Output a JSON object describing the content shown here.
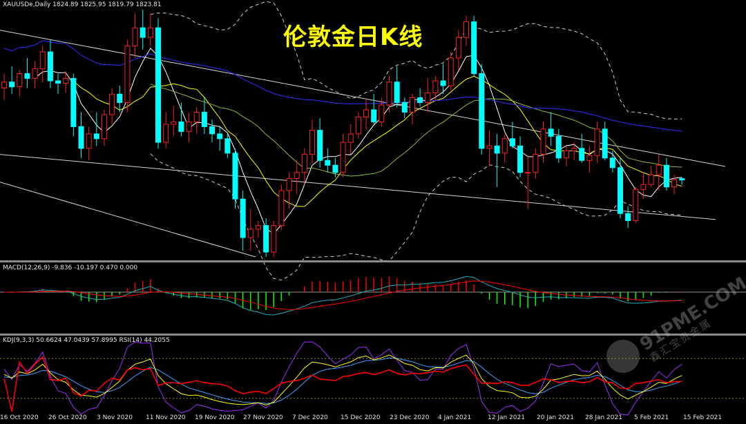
{
  "header": {
    "symbol_line": "XAUUSDe,Daily  1824.89 1825.95 1819.79 1823.81",
    "title": "伦敦金日K线"
  },
  "macd_panel": {
    "label": "MACD(12,26,9) -9.836 -10.197 0.470 0.000"
  },
  "kdj_panel": {
    "label": "KDJ(9,3,3) 50.6624 47.0439 57.8995  RSI(14) 44.2055"
  },
  "dates": [
    "16 Oct 2020",
    "26 Oct 2020",
    "3 Nov 2020",
    "11 Nov 2020",
    "19 Nov 2020",
    "27 Nov 2020",
    "7 Dec 2020",
    "15 Dec 2020",
    "23 Dec 2020",
    "4 Jan 2021",
    "12 Jan 2021",
    "20 Jan 2021",
    "28 Jan 2021",
    "5 Feb 2021",
    "15 Feb 2021"
  ],
  "watermark": {
    "brand": "91PME.COM",
    "cn": "鑫汇宝贵金属"
  },
  "colors": {
    "up": "#ff2020",
    "down": "#00ffff",
    "ma_fast": "#ffffff",
    "ma_mid": "#ffff00",
    "ma_slow": "#8fbf30",
    "ma_long": "#3030ff",
    "bands": "#cfcfcf",
    "macd_pos": "#ff0000",
    "macd_neg": "#00ff00",
    "macd_line": "#20b0c0",
    "signal": "#ff0000",
    "k": "#ffff00",
    "d": "#40a0ff",
    "j": "#9b30ff",
    "rsi": "#ff0000"
  },
  "chart_data": {
    "type": "candlestick",
    "symbol": "XAUUSDe",
    "timeframe": "Daily",
    "last_ohlc": [
      1824.89,
      1825.95,
      1819.79,
      1823.81
    ],
    "candles": [
      [
        1900,
        1912,
        1890,
        1905
      ],
      [
        1905,
        1918,
        1895,
        1901
      ],
      [
        1901,
        1915,
        1893,
        1912
      ],
      [
        1912,
        1925,
        1900,
        1908
      ],
      [
        1908,
        1922,
        1900,
        1916
      ],
      [
        1916,
        1935,
        1905,
        1930
      ],
      [
        1930,
        1940,
        1900,
        1906
      ],
      [
        1906,
        1912,
        1895,
        1904
      ],
      [
        1904,
        1914,
        1896,
        1908
      ],
      [
        1908,
        1912,
        1860,
        1868
      ],
      [
        1868,
        1880,
        1842,
        1850
      ],
      [
        1850,
        1868,
        1840,
        1862
      ],
      [
        1862,
        1880,
        1852,
        1858
      ],
      [
        1858,
        1882,
        1852,
        1878
      ],
      [
        1878,
        1900,
        1870,
        1895
      ],
      [
        1895,
        1902,
        1880,
        1888
      ],
      [
        1888,
        1940,
        1880,
        1935
      ],
      [
        1935,
        1962,
        1925,
        1950
      ],
      [
        1950,
        1965,
        1932,
        1942
      ],
      [
        1942,
        1962,
        1935,
        1950
      ],
      [
        1950,
        1958,
        1850,
        1855
      ],
      [
        1855,
        1880,
        1850,
        1870
      ],
      [
        1870,
        1885,
        1860,
        1872
      ],
      [
        1872,
        1888,
        1860,
        1864
      ],
      [
        1864,
        1880,
        1855,
        1872
      ],
      [
        1872,
        1884,
        1862,
        1880
      ],
      [
        1880,
        1892,
        1862,
        1868
      ],
      [
        1868,
        1874,
        1855,
        1862
      ],
      [
        1862,
        1868,
        1848,
        1858
      ],
      [
        1858,
        1862,
        1842,
        1846
      ],
      [
        1846,
        1850,
        1800,
        1808
      ],
      [
        1808,
        1815,
        1765,
        1776
      ],
      [
        1776,
        1800,
        1765,
        1783
      ],
      [
        1783,
        1790,
        1776,
        1786
      ],
      [
        1786,
        1792,
        1760,
        1764
      ],
      [
        1764,
        1790,
        1760,
        1786
      ],
      [
        1786,
        1820,
        1782,
        1815
      ],
      [
        1815,
        1830,
        1800,
        1825
      ],
      [
        1825,
        1840,
        1812,
        1830
      ],
      [
        1830,
        1850,
        1820,
        1845
      ],
      [
        1845,
        1874,
        1838,
        1865
      ],
      [
        1865,
        1875,
        1834,
        1840
      ],
      [
        1840,
        1850,
        1830,
        1836
      ],
      [
        1836,
        1842,
        1826,
        1830
      ],
      [
        1830,
        1862,
        1826,
        1855
      ],
      [
        1855,
        1870,
        1845,
        1862
      ],
      [
        1862,
        1880,
        1858,
        1876
      ],
      [
        1876,
        1890,
        1866,
        1882
      ],
      [
        1882,
        1895,
        1870,
        1872
      ],
      [
        1872,
        1892,
        1868,
        1886
      ],
      [
        1886,
        1910,
        1880,
        1905
      ],
      [
        1905,
        1918,
        1884,
        1888
      ],
      [
        1888,
        1892,
        1875,
        1880
      ],
      [
        1880,
        1895,
        1870,
        1892
      ],
      [
        1892,
        1900,
        1885,
        1888
      ],
      [
        1888,
        1908,
        1880,
        1896
      ],
      [
        1896,
        1910,
        1890,
        1906
      ],
      [
        1906,
        1920,
        1895,
        1902
      ],
      [
        1902,
        1930,
        1898,
        1925
      ],
      [
        1925,
        1948,
        1915,
        1942
      ],
      [
        1942,
        1960,
        1935,
        1955
      ],
      [
        1955,
        1960,
        1910,
        1912
      ],
      [
        1912,
        1920,
        1845,
        1850
      ],
      [
        1850,
        1865,
        1835,
        1852
      ],
      [
        1852,
        1862,
        1818,
        1846
      ],
      [
        1846,
        1862,
        1838,
        1858
      ],
      [
        1858,
        1872,
        1850,
        1852
      ],
      [
        1852,
        1860,
        1826,
        1830
      ],
      [
        1830,
        1844,
        1800,
        1830
      ],
      [
        1830,
        1850,
        1825,
        1845
      ],
      [
        1845,
        1872,
        1838,
        1866
      ],
      [
        1866,
        1880,
        1852,
        1860
      ],
      [
        1860,
        1866,
        1838,
        1842
      ],
      [
        1842,
        1852,
        1835,
        1848
      ],
      [
        1848,
        1855,
        1840,
        1850
      ],
      [
        1850,
        1862,
        1838,
        1840
      ],
      [
        1840,
        1852,
        1830,
        1844
      ],
      [
        1844,
        1872,
        1838,
        1866
      ],
      [
        1866,
        1872,
        1840,
        1842
      ],
      [
        1842,
        1848,
        1830,
        1834
      ],
      [
        1834,
        1842,
        1792,
        1796
      ],
      [
        1796,
        1802,
        1784,
        1790
      ],
      [
        1790,
        1818,
        1788,
        1816
      ],
      [
        1816,
        1830,
        1808,
        1820
      ],
      [
        1820,
        1835,
        1818,
        1828
      ],
      [
        1828,
        1845,
        1815,
        1836
      ],
      [
        1836,
        1842,
        1815,
        1818
      ],
      [
        1818,
        1828,
        1812,
        1824
      ],
      [
        1824.89,
        1825.95,
        1819.79,
        1823.81
      ]
    ],
    "ylim": [
      1760,
      1965
    ],
    "x_labels": [
      "16 Oct 2020",
      "26 Oct 2020",
      "3 Nov 2020",
      "11 Nov 2020",
      "19 Nov 2020",
      "27 Nov 2020",
      "7 Dec 2020",
      "15 Dec 2020",
      "23 Dec 2020",
      "4 Jan 2021",
      "12 Jan 2021",
      "20 Jan 2021",
      "28 Jan 2021",
      "5 Feb 2021",
      "15 Feb 2021"
    ],
    "macd": {
      "macd": -9.836,
      "signal": -10.197,
      "hist": 0.47
    },
    "kdj": {
      "k": 50.6624,
      "d": 47.0439,
      "j": 57.8995
    },
    "rsi": 44.2055
  }
}
